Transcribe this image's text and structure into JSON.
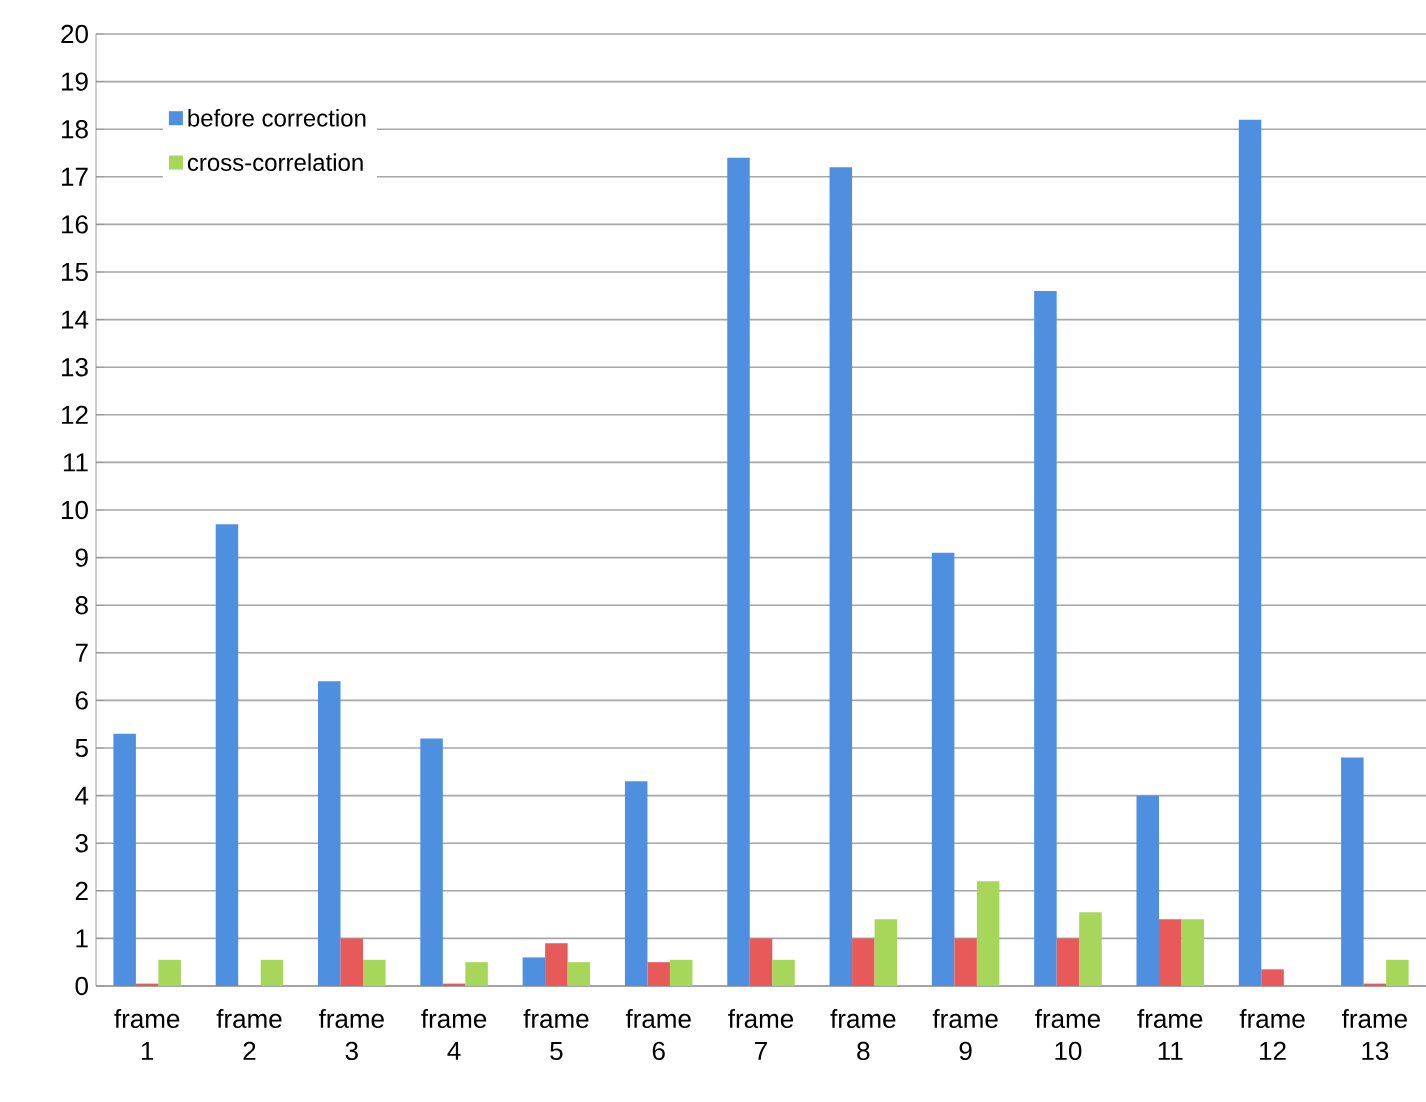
{
  "chart_data": {
    "type": "bar",
    "categories": [
      "frame 1",
      "frame 2",
      "frame 3",
      "frame 4",
      "frame 5",
      "frame 6",
      "frame 7",
      "frame 8",
      "frame 9",
      "frame 10",
      "frame 11",
      "frame 12",
      "frame 13"
    ],
    "series": [
      {
        "name": "before correction",
        "color": "#4f8fe0",
        "values": [
          5.3,
          9.7,
          6.4,
          5.2,
          0.6,
          4.3,
          17.4,
          17.2,
          9.1,
          14.6,
          4.0,
          18.2,
          4.8
        ]
      },
      {
        "color": "#e8595a",
        "values": [
          0.05,
          0,
          1.0,
          0.05,
          0.9,
          0.5,
          1.0,
          1.0,
          1.0,
          1.0,
          1.4,
          0.35,
          0.05
        ]
      },
      {
        "name": "cross-correlation",
        "color": "#a6d65a",
        "values": [
          0.55,
          0.55,
          0.55,
          0.5,
          0.5,
          0.55,
          0.55,
          1.4,
          2.2,
          1.55,
          1.4,
          0,
          0.55
        ]
      }
    ],
    "ylim": [
      0,
      20
    ],
    "yticks": [
      0,
      1,
      2,
      3,
      4,
      5,
      6,
      7,
      8,
      9,
      10,
      11,
      12,
      13,
      14,
      15,
      16,
      17,
      18,
      19,
      20
    ],
    "grid": "y",
    "legend": "top left"
  }
}
